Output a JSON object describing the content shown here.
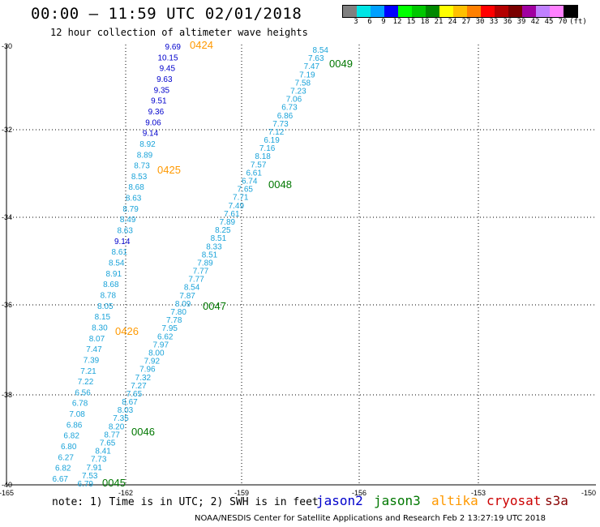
{
  "header": {
    "title": "00:00 – 11:59 UTC 02/01/2018",
    "subtitle": "12 hour collection of altimeter wave heights"
  },
  "color_scale": {
    "labels": [
      "3",
      "6",
      "9",
      "12",
      "15",
      "18",
      "21",
      "24",
      "27",
      "30",
      "33",
      "36",
      "39",
      "42",
      "45",
      "70",
      "(ft)"
    ],
    "colors": [
      "#808080",
      "#00e5e5",
      "#00a0ff",
      "#0000ff",
      "#00ff00",
      "#00c800",
      "#008800",
      "#ffff00",
      "#ffc000",
      "#ff8000",
      "#ff0000",
      "#b40000",
      "#7a0000",
      "#a000a0",
      "#c080ff",
      "#ff80ff",
      "#000000"
    ]
  },
  "map": {
    "lon_labels": [
      "-165",
      "-162",
      "-159",
      "-156",
      "-153",
      "-150"
    ],
    "lat_labels": [
      "-30",
      "-32",
      "-34",
      "-36",
      "-38",
      "-40"
    ],
    "satellite_colors": {
      "jason2": "#0000cc",
      "jason3": "#007700",
      "altika": "#ff9900",
      "cryosat": "#cc0000",
      "s3a": "#880000",
      "wave_light": "#1aa3d9"
    },
    "time_labels": [
      {
        "text": "0424",
        "sat": "altika"
      },
      {
        "text": "0425",
        "sat": "altika"
      },
      {
        "text": "0426",
        "sat": "altika"
      },
      {
        "text": "0049",
        "sat": "jason3"
      },
      {
        "text": "0048",
        "sat": "jason3"
      },
      {
        "text": "0047",
        "sat": "jason3"
      },
      {
        "text": "0046",
        "sat": "jason3"
      },
      {
        "text": "0045",
        "sat": "jason3"
      }
    ],
    "track_left": {
      "values": [
        "9.69",
        "10.15",
        "9.45",
        "9.63",
        "9.35",
        "9.51",
        "9.36",
        "9.06",
        "9.14",
        "8.92",
        "8.89",
        "8.73",
        "8.53",
        "8.68",
        "8.63",
        "8.79",
        "8.49",
        "8.63",
        "9.14",
        "8.61",
        "8.54",
        "8.91",
        "8.68",
        "8.78",
        "8.05",
        "8.15",
        "8.30",
        "8.07",
        "7.47",
        "7.39",
        "7.21",
        "7.22",
        "6.56",
        "6.78",
        "7.08",
        "6.86",
        "6.82",
        "6.80",
        "6.27",
        "6.82",
        "6.67"
      ],
      "colors": [
        "b",
        "b",
        "b",
        "b",
        "b",
        "b",
        "b",
        "b",
        "b",
        "c",
        "c",
        "c",
        "c",
        "c",
        "c",
        "c",
        "c",
        "c",
        "b",
        "c",
        "c",
        "c",
        "c",
        "c",
        "c",
        "c",
        "c",
        "c",
        "c",
        "c",
        "c",
        "c",
        "c",
        "c",
        "c",
        "c",
        "c",
        "c",
        "c",
        "c",
        "c"
      ]
    },
    "track_right": {
      "values": [
        "8.54",
        "7.63",
        "7.47",
        "7.19",
        "7.58",
        "7.23",
        "7.06",
        "6.73",
        "6.86",
        "7.73",
        "7.12",
        "6.19",
        "7.16",
        "8.18",
        "7.57",
        "6.61",
        "6.74",
        "7.65",
        "7.71",
        "7.49",
        "7.61",
        "7.89",
        "8.25",
        "8.51",
        "8.33",
        "8.51",
        "7.89",
        "7.77",
        "7.77",
        "8.54",
        "7.87",
        "8.09",
        "7.80",
        "7.78",
        "7.95",
        "6.62",
        "7.97",
        "8.00",
        "7.92",
        "7.96",
        "7.32",
        "7.27",
        "7.65",
        "8.67",
        "8.03",
        "7.35",
        "8.20",
        "8.77",
        "7.65",
        "8.41",
        "7.73",
        "7.91",
        "7.53",
        "6.79"
      ]
    }
  },
  "footer": {
    "note": "note: 1) Time is in UTC; 2) SWH is in feet",
    "legend": [
      "jason2",
      "jason3",
      "altika",
      "cryosat",
      "s3a"
    ],
    "credit": "NOAA/NESDIS Center for Satellite Applications and Research    Feb  2 13:27:19 UTC 2018"
  }
}
